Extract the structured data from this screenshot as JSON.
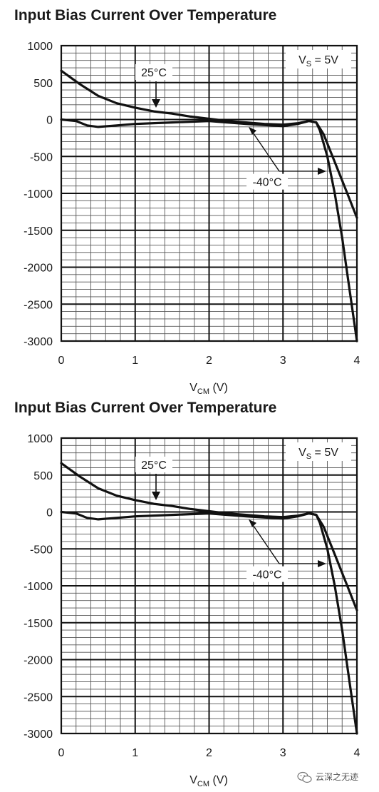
{
  "charts": [
    {
      "title": "Input Bias Current Over Temperature",
      "xlabel": {
        "main": "V",
        "sub": "CM",
        "rest": " (V)"
      },
      "vs_label": {
        "main": "V",
        "sub": "S",
        "rest": " = 5V"
      },
      "annotations": {
        "t25": "25°C",
        "tm40": "-40°C"
      },
      "chart_data": {
        "type": "line",
        "title": "Input Bias Current Over Temperature",
        "xlabel": "VCM (V)",
        "ylabel": "",
        "xlim": [
          0,
          4
        ],
        "ylim": [
          -3000,
          1000
        ],
        "xticks": [
          "0",
          "1",
          "2",
          "3",
          "4"
        ],
        "yticks": [
          "1000",
          "500",
          "0",
          "-500",
          "-1000",
          "-1500",
          "-2000",
          "-2500",
          "-3000"
        ],
        "grid": true,
        "series": [
          {
            "name": "25°C",
            "points": [
              [
                0,
                660
              ],
              [
                0.25,
                480
              ],
              [
                0.5,
                320
              ],
              [
                0.75,
                220
              ],
              [
                1.0,
                160
              ],
              [
                1.25,
                110
              ],
              [
                1.5,
                80
              ],
              [
                1.75,
                40
              ],
              [
                2.0,
                10
              ],
              [
                2.25,
                -20
              ],
              [
                2.5,
                -40
              ],
              [
                2.75,
                -60
              ],
              [
                3.0,
                -70
              ],
              [
                3.2,
                -50
              ],
              [
                3.35,
                -20
              ],
              [
                3.45,
                -40
              ],
              [
                3.55,
                -200
              ],
              [
                3.65,
                -450
              ],
              [
                3.75,
                -700
              ],
              [
                3.85,
                -950
              ],
              [
                4.0,
                -1330
              ]
            ]
          },
          {
            "name": "-40°C",
            "points": [
              [
                0,
                0
              ],
              [
                0.2,
                -20
              ],
              [
                0.35,
                -80
              ],
              [
                0.5,
                -100
              ],
              [
                0.75,
                -80
              ],
              [
                1.0,
                -60
              ],
              [
                1.5,
                -40
              ],
              [
                2.0,
                -20
              ],
              [
                2.5,
                -60
              ],
              [
                3.0,
                -90
              ],
              [
                3.2,
                -60
              ],
              [
                3.35,
                -20
              ],
              [
                3.45,
                -40
              ],
              [
                3.5,
                -150
              ],
              [
                3.6,
                -500
              ],
              [
                3.7,
                -1000
              ],
              [
                3.8,
                -1600
              ],
              [
                3.9,
                -2300
              ],
              [
                4.0,
                -3000
              ]
            ]
          }
        ]
      }
    },
    {
      "title": "Input Bias Current Over Temperature",
      "xlabel": {
        "main": "V",
        "sub": "CM",
        "rest": " (V)"
      },
      "vs_label": {
        "main": "V",
        "sub": "S",
        "rest": " = 5V"
      },
      "annotations": {
        "t25": "25°C",
        "tm40": "-40°C"
      },
      "chart_data": {
        "type": "line",
        "title": "Input Bias Current Over Temperature",
        "xlabel": "VCM (V)",
        "ylabel": "",
        "xlim": [
          0,
          4
        ],
        "ylim": [
          -3000,
          1000
        ],
        "xticks": [
          "0",
          "1",
          "2",
          "3",
          "4"
        ],
        "yticks": [
          "1000",
          "500",
          "0",
          "-500",
          "-1000",
          "-1500",
          "-2000",
          "-2500",
          "-3000"
        ],
        "grid": true,
        "series": [
          {
            "name": "25°C",
            "points": [
              [
                0,
                660
              ],
              [
                0.25,
                480
              ],
              [
                0.5,
                320
              ],
              [
                0.75,
                220
              ],
              [
                1.0,
                160
              ],
              [
                1.25,
                110
              ],
              [
                1.5,
                80
              ],
              [
                1.75,
                40
              ],
              [
                2.0,
                10
              ],
              [
                2.25,
                -20
              ],
              [
                2.5,
                -40
              ],
              [
                2.75,
                -60
              ],
              [
                3.0,
                -70
              ],
              [
                3.2,
                -50
              ],
              [
                3.35,
                -20
              ],
              [
                3.45,
                -40
              ],
              [
                3.55,
                -200
              ],
              [
                3.65,
                -450
              ],
              [
                3.75,
                -700
              ],
              [
                3.85,
                -950
              ],
              [
                4.0,
                -1330
              ]
            ]
          },
          {
            "name": "-40°C",
            "points": [
              [
                0,
                0
              ],
              [
                0.2,
                -20
              ],
              [
                0.35,
                -80
              ],
              [
                0.5,
                -100
              ],
              [
                0.75,
                -80
              ],
              [
                1.0,
                -60
              ],
              [
                1.5,
                -40
              ],
              [
                2.0,
                -20
              ],
              [
                2.5,
                -60
              ],
              [
                3.0,
                -90
              ],
              [
                3.2,
                -60
              ],
              [
                3.35,
                -20
              ],
              [
                3.45,
                -40
              ],
              [
                3.5,
                -150
              ],
              [
                3.6,
                -500
              ],
              [
                3.7,
                -1000
              ],
              [
                3.8,
                -1600
              ],
              [
                3.9,
                -2300
              ],
              [
                4.0,
                -3000
              ]
            ]
          }
        ]
      }
    }
  ],
  "watermark": "云深之无迹"
}
